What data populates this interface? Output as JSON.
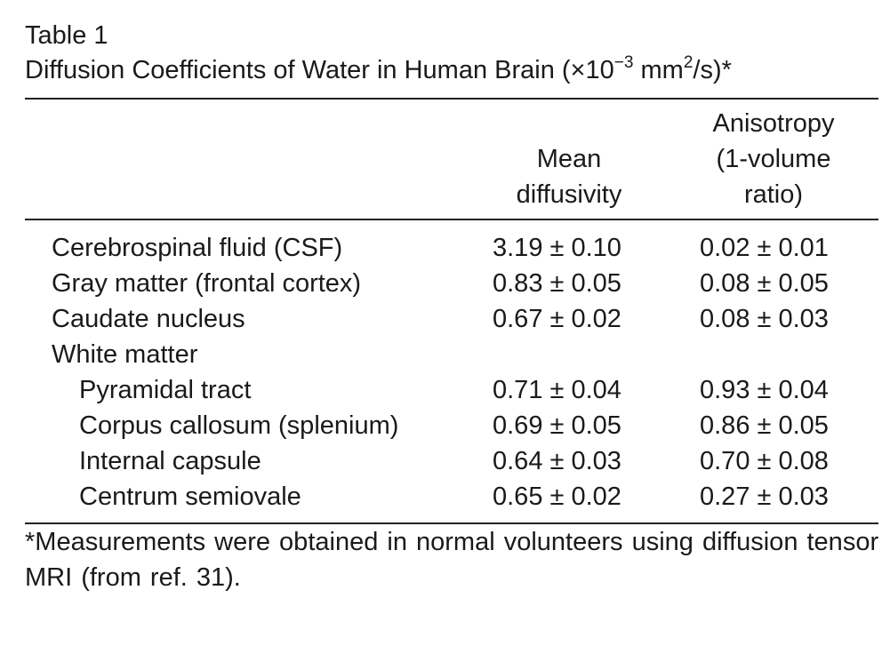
{
  "table": {
    "label": "Table 1",
    "title_main": "Diffusion Coefficients of Water in Human Brain (×10",
    "title_exp": "−3",
    "title_unit_a": " mm",
    "title_unit_exp": "2",
    "title_unit_b": "/s)*",
    "columns": {
      "mean": {
        "line1": "Mean",
        "line2": "diffusivity"
      },
      "anisotropy": {
        "line1": "Anisotropy",
        "line2": "(1-volume",
        "line3": "ratio)"
      }
    },
    "rows": [
      {
        "label": "Cerebrospinal fluid (CSF)",
        "mean": "3.19 ± 0.10",
        "anisotropy": "0.02 ± 0.01"
      },
      {
        "label": "Gray matter (frontal cortex)",
        "mean": "0.83 ± 0.05",
        "anisotropy": "0.08 ± 0.05"
      },
      {
        "label": "Caudate nucleus",
        "mean": "0.67 ± 0.02",
        "anisotropy": "0.08 ± 0.03"
      },
      {
        "label": "White matter",
        "mean": "",
        "anisotropy": ""
      },
      {
        "label": "Pyramidal tract",
        "mean": "0.71 ± 0.04",
        "anisotropy": "0.93 ± 0.04"
      },
      {
        "label": "Corpus callosum (splenium)",
        "mean": "0.69 ± 0.05",
        "anisotropy": "0.86 ± 0.05"
      },
      {
        "label": "Internal capsule",
        "mean": "0.64 ± 0.03",
        "anisotropy": "0.70 ± 0.08"
      },
      {
        "label": "Centrum semiovale",
        "mean": "0.65 ± 0.02",
        "anisotropy": "0.27 ± 0.03"
      }
    ],
    "footnote": "*Measurements were obtained in normal volunteers using diffusion tensor MRI (from ref. 31)."
  }
}
